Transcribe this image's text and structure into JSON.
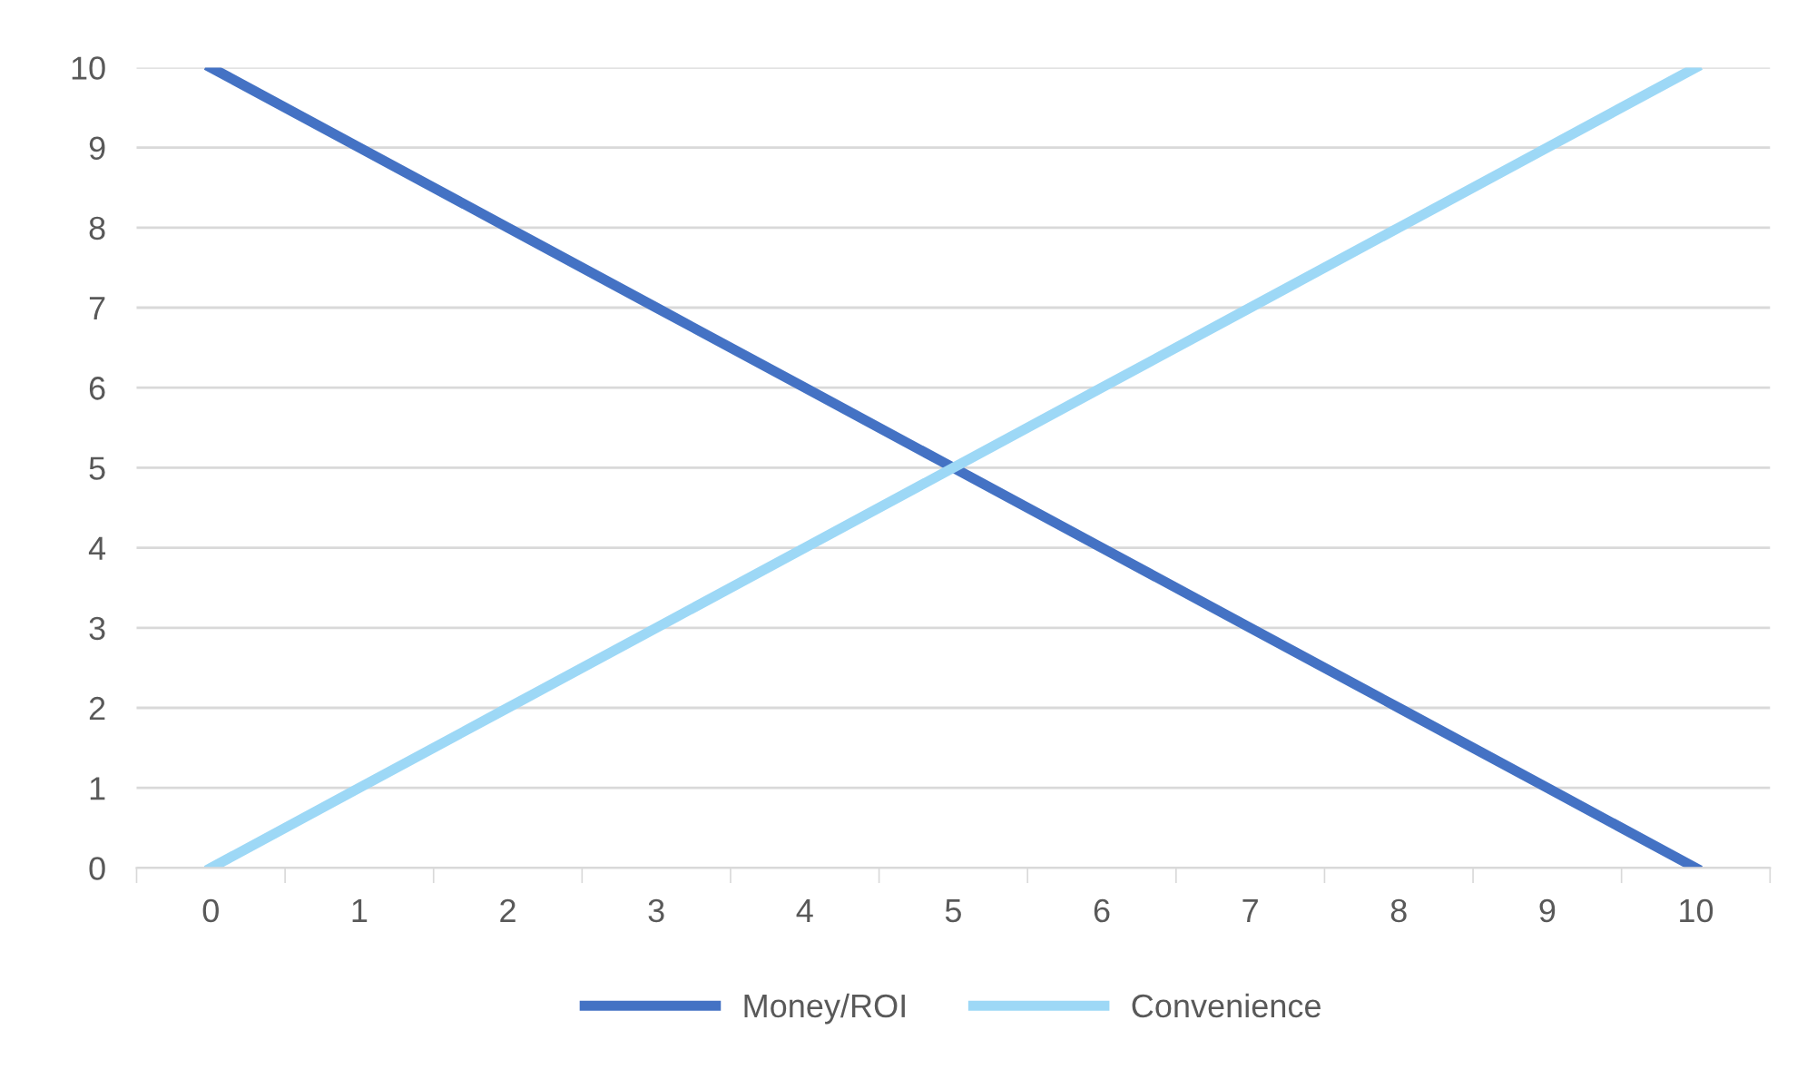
{
  "chart_data": {
    "type": "line",
    "categories": [
      "0",
      "1",
      "2",
      "3",
      "4",
      "5",
      "6",
      "7",
      "8",
      "9",
      "10"
    ],
    "series": [
      {
        "name": "Money/ROI",
        "color": "#4472c4",
        "values": [
          10,
          9,
          8,
          7,
          6,
          5,
          4,
          3,
          2,
          1,
          0
        ]
      },
      {
        "name": "Convenience",
        "color": "#9dd8f6",
        "values": [
          0,
          1,
          2,
          3,
          4,
          5,
          6,
          7,
          8,
          9,
          10
        ]
      }
    ],
    "ylim": [
      0,
      10
    ],
    "yticks": [
      0,
      1,
      2,
      3,
      4,
      5,
      6,
      7,
      8,
      9,
      10
    ],
    "grid": "y",
    "legend": "bottom",
    "line_style": "solid",
    "marker": "none"
  }
}
